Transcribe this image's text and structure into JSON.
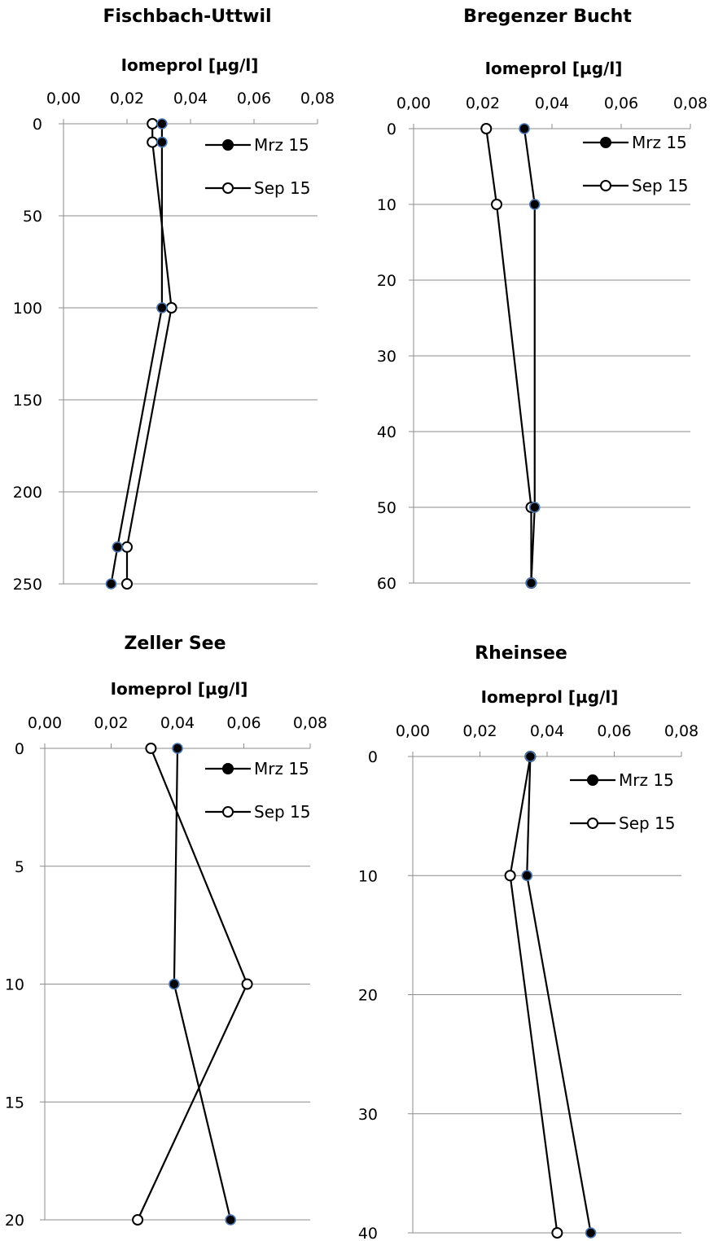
{
  "chart_data": [
    {
      "type": "line",
      "title": "Fischbach-Uttwil",
      "xlabel": "Iomeprol [µg/l]",
      "ylabel": "",
      "xlim": [
        0,
        0.08
      ],
      "ylim": [
        0,
        250
      ],
      "x_ticks": [
        "0,00",
        "0,02",
        "0,04",
        "0,06",
        "0,08"
      ],
      "y_ticks": [
        "0",
        "50",
        "100",
        "150",
        "200",
        "250"
      ],
      "y_inverted": true,
      "grid": "horizontal",
      "legend_position": "top-right",
      "series": [
        {
          "name": "Mrz 15",
          "marker": "filled",
          "points": [
            [
              0.031,
              0
            ],
            [
              0.031,
              10
            ],
            [
              0.031,
              100
            ],
            [
              0.017,
              230
            ],
            [
              0.015,
              250
            ]
          ]
        },
        {
          "name": "Sep 15",
          "marker": "open",
          "points": [
            [
              0.028,
              0
            ],
            [
              0.028,
              10
            ],
            [
              0.034,
              100
            ],
            [
              0.02,
              230
            ],
            [
              0.02,
              250
            ]
          ]
        }
      ]
    },
    {
      "type": "line",
      "title": "Bregenzer Bucht",
      "xlabel": "Iomeprol [µg/l]",
      "ylabel": "",
      "xlim": [
        0,
        0.08
      ],
      "ylim": [
        0,
        60
      ],
      "x_ticks": [
        "0,00",
        "0,02",
        "0,04",
        "0,06",
        "0,08"
      ],
      "y_ticks": [
        "0",
        "10",
        "20",
        "30",
        "40",
        "50",
        "60"
      ],
      "y_inverted": true,
      "grid": "horizontal",
      "legend_position": "top-right",
      "series": [
        {
          "name": "Mrz 15",
          "marker": "filled",
          "points": [
            [
              0.032,
              0
            ],
            [
              0.035,
              10
            ],
            [
              0.035,
              50
            ],
            [
              0.034,
              60
            ]
          ]
        },
        {
          "name": "Sep 15",
          "marker": "open",
          "points": [
            [
              0.021,
              0
            ],
            [
              0.024,
              10
            ],
            [
              0.034,
              50
            ],
            [
              0.034,
              60
            ]
          ]
        }
      ]
    },
    {
      "type": "line",
      "title": "Zeller See",
      "xlabel": "Iomeprol [µg/l]",
      "ylabel": "",
      "xlim": [
        0,
        0.08
      ],
      "ylim": [
        0,
        20
      ],
      "x_ticks": [
        "0,00",
        "0,02",
        "0,04",
        "0,06",
        "0,08"
      ],
      "y_ticks": [
        "0",
        "5",
        "10",
        "15",
        "20"
      ],
      "y_inverted": true,
      "grid": "horizontal",
      "legend_position": "top-right",
      "series": [
        {
          "name": "Mrz 15",
          "marker": "filled",
          "points": [
            [
              0.04,
              0
            ],
            [
              0.039,
              10
            ],
            [
              0.056,
              20
            ]
          ]
        },
        {
          "name": "Sep 15",
          "marker": "open",
          "points": [
            [
              0.032,
              0
            ],
            [
              0.061,
              10
            ],
            [
              0.028,
              20
            ]
          ]
        }
      ]
    },
    {
      "type": "line",
      "title": "Rheinsee",
      "xlabel": "Iomeprol [µg/l]",
      "ylabel": "",
      "xlim": [
        0,
        0.08
      ],
      "ylim": [
        0,
        40
      ],
      "x_ticks": [
        "0,00",
        "0,02",
        "0,04",
        "0,06",
        "0,08"
      ],
      "y_ticks": [
        "0",
        "10",
        "20",
        "30",
        "40"
      ],
      "y_inverted": true,
      "grid": "horizontal",
      "legend_position": "top-right",
      "series": [
        {
          "name": "Mrz 15",
          "marker": "filled",
          "points": [
            [
              0.035,
              0
            ],
            [
              0.034,
              10
            ],
            [
              0.053,
              40
            ]
          ]
        },
        {
          "name": "Sep 15",
          "marker": "open",
          "points": [
            [
              0.035,
              0
            ],
            [
              0.029,
              10
            ],
            [
              0.043,
              40
            ]
          ]
        }
      ]
    }
  ],
  "colors": {
    "line": "#000000",
    "grid": "#8c8c8c",
    "filled_marker_edge": "#4a78b5"
  }
}
